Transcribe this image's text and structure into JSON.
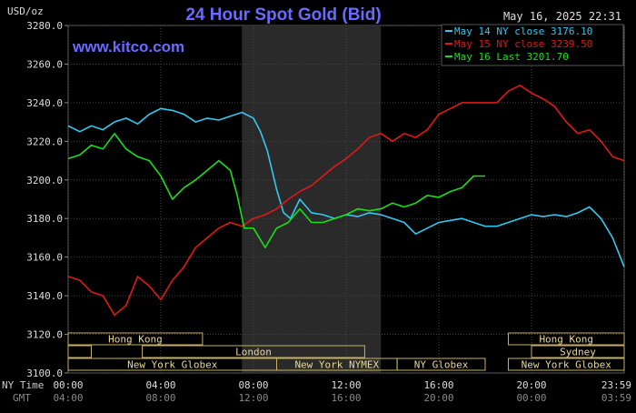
{
  "chart_data": {
    "type": "line",
    "title": "24 Hour Spot Gold (Bid)",
    "watermark": "www.kitco.com",
    "date_stamp": "May 16, 2025 22:31",
    "ylabel": "USD/oz",
    "ylim": [
      3100,
      3280
    ],
    "y_ticks": [
      "3280.0",
      "3260.0",
      "3240.0",
      "3220.0",
      "3200.0",
      "3180.0",
      "3160.0",
      "3140.0",
      "3120.0",
      "3100.0"
    ],
    "y_tick_values": [
      3280,
      3260,
      3240,
      3220,
      3200,
      3180,
      3160,
      3140,
      3120,
      3100
    ],
    "x_axis_label": "NY Time",
    "x_axis2_label": "GMT",
    "x_ticks": [
      "00:00",
      "04:00",
      "08:00",
      "12:00",
      "16:00",
      "20:00",
      "23:59"
    ],
    "x_ticks_gmt": [
      "04:00",
      "08:00",
      "12:00",
      "16:00",
      "20:00",
      "00:00",
      "03:59"
    ],
    "x_tick_hours": [
      0,
      4,
      8,
      12,
      16,
      20,
      24
    ],
    "xlim_hours": [
      0,
      24
    ],
    "grid": true,
    "legend_position": "top-right",
    "highlight_band_hours": [
      7.5,
      13.5
    ],
    "series": [
      {
        "name": "May 14 NY close 3176.10",
        "color": "#33c8f0",
        "x_hours": [
          0,
          0.5,
          1,
          1.5,
          2,
          2.5,
          3,
          3.5,
          4,
          4.5,
          5,
          5.5,
          6,
          6.5,
          7,
          7.5,
          8,
          8.3,
          8.6,
          9,
          9.3,
          9.6,
          10,
          10.5,
          11,
          11.5,
          12,
          12.5,
          13,
          13.5,
          14,
          14.5,
          15,
          15.5,
          16,
          16.5,
          17,
          17.5,
          18,
          18.5,
          19,
          19.5,
          20,
          20.5,
          21,
          21.5,
          22,
          22.5,
          23,
          23.5,
          24
        ],
        "y": [
          3228,
          3225,
          3228,
          3226,
          3230,
          3232,
          3229,
          3234,
          3237,
          3236,
          3234,
          3230,
          3232,
          3231,
          3233,
          3235,
          3232,
          3225,
          3215,
          3195,
          3183,
          3180,
          3190,
          3183,
          3182,
          3180,
          3182,
          3181,
          3183,
          3182,
          3180,
          3178,
          3172,
          3175,
          3178,
          3179,
          3180,
          3178,
          3176,
          3176,
          3178,
          3180,
          3182,
          3181,
          3182,
          3181,
          3183,
          3186,
          3180,
          3170,
          3155
        ]
      },
      {
        "name": "May 15 NY close 3239.50",
        "color": "#e01818",
        "x_hours": [
          0,
          0.5,
          1,
          1.5,
          2,
          2.5,
          3,
          3.5,
          4,
          4.5,
          5,
          5.5,
          6,
          6.5,
          7,
          7.5,
          8,
          8.5,
          9,
          9.5,
          10,
          10.5,
          11,
          11.5,
          12,
          12.5,
          13,
          13.5,
          14,
          14.5,
          15,
          15.5,
          16,
          16.5,
          17,
          17.5,
          18,
          18.5,
          19,
          19.5,
          20,
          20.5,
          21,
          21.5,
          22,
          22.5,
          23,
          23.5,
          24
        ],
        "y": [
          3150,
          3148,
          3142,
          3140,
          3130,
          3135,
          3150,
          3145,
          3138,
          3148,
          3155,
          3165,
          3170,
          3175,
          3178,
          3176,
          3180,
          3182,
          3185,
          3190,
          3194,
          3197,
          3202,
          3207,
          3211,
          3216,
          3222,
          3224,
          3220,
          3224,
          3222,
          3226,
          3234,
          3237,
          3240,
          3240,
          3240,
          3240,
          3246,
          3249,
          3245,
          3242,
          3238,
          3230,
          3224,
          3226,
          3220,
          3212,
          3210
        ]
      },
      {
        "name": "May 16 Last 3201.70",
        "color": "#18e018",
        "x_hours": [
          0,
          0.5,
          1,
          1.5,
          2,
          2.5,
          3,
          3.5,
          4,
          4.5,
          5,
          5.5,
          6,
          6.5,
          7,
          7.3,
          7.6,
          8,
          8.5,
          9,
          9.5,
          10,
          10.5,
          11,
          11.5,
          12,
          12.5,
          13,
          13.5,
          14,
          14.5,
          15,
          15.5,
          16,
          16.5,
          17,
          17.5,
          18
        ],
        "y": [
          3211,
          3213,
          3218,
          3216,
          3224,
          3216,
          3212,
          3210,
          3202,
          3190,
          3196,
          3200,
          3205,
          3210,
          3205,
          3192,
          3175,
          3175,
          3165,
          3175,
          3178,
          3185,
          3178,
          3178,
          3180,
          3182,
          3185,
          3184,
          3185,
          3188,
          3186,
          3188,
          3192,
          3191,
          3194,
          3196,
          3202,
          3202
        ]
      }
    ],
    "sessions": {
      "labels": [
        "Hong Kong",
        "London",
        "New York Globex",
        "New York NYMEX",
        "NY Globex",
        "Hong Kong",
        "Sydney",
        "New York Globex"
      ]
    }
  }
}
